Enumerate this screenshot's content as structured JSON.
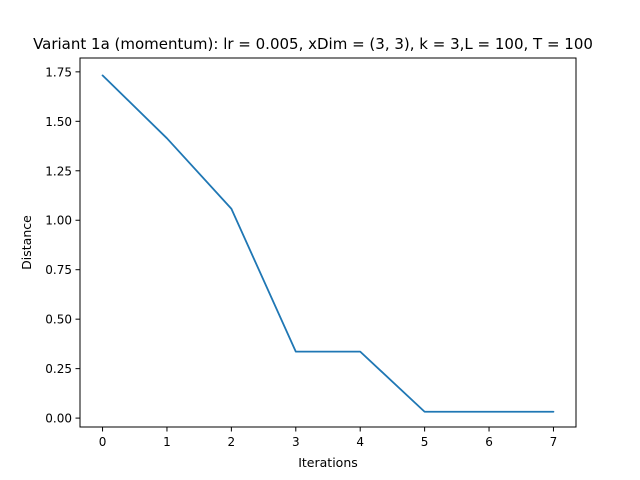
{
  "chart_data": {
    "type": "line",
    "title": "Variant 1a (momentum): lr = 0.005, xDim = (3, 3), k = 3,L = 100, T = 100",
    "xlabel": "Iterations",
    "ylabel": "Distance",
    "x": [
      0,
      1,
      2,
      3,
      4,
      5,
      6,
      7
    ],
    "series": [
      {
        "values": [
          1.732,
          1.414,
          1.058,
          0.336,
          0.336,
          0.032,
          0.032,
          0.032
        ],
        "color": "#1f77b4"
      }
    ],
    "xlim": [
      -0.35,
      7.35
    ],
    "ylim": [
      -0.045,
      1.82
    ],
    "xticks": [
      0,
      1,
      2,
      3,
      4,
      5,
      6,
      7
    ],
    "xtick_labels": [
      "0",
      "1",
      "2",
      "3",
      "4",
      "5",
      "6",
      "7"
    ],
    "yticks": [
      0.0,
      0.25,
      0.5,
      0.75,
      1.0,
      1.25,
      1.5,
      1.75
    ],
    "ytick_labels": [
      "0.00",
      "0.25",
      "0.50",
      "0.75",
      "1.00",
      "1.25",
      "1.50",
      "1.75"
    ],
    "grid": false,
    "legend": "none"
  }
}
